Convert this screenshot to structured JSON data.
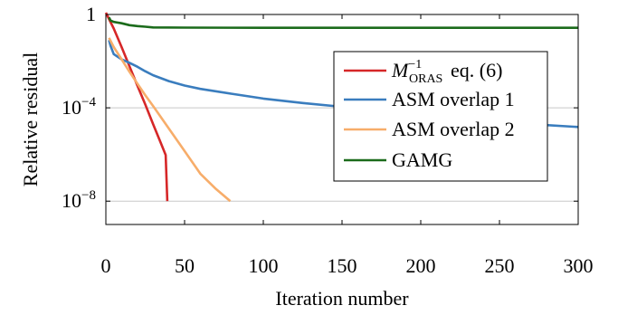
{
  "chart_data": {
    "type": "line",
    "xlabel": "Iteration number",
    "ylabel": "Relative residual",
    "xlim": [
      0,
      300
    ],
    "ylim": [
      1e-09,
      1
    ],
    "yscale": "log",
    "grid": "horizontal lines at major y ticks",
    "legend_position": "right",
    "x_ticks": [
      {
        "value": 0,
        "label": "0"
      },
      {
        "value": 50,
        "label": "50"
      },
      {
        "value": 100,
        "label": "100"
      },
      {
        "value": 150,
        "label": "150"
      },
      {
        "value": 200,
        "label": "200"
      },
      {
        "value": 250,
        "label": "250"
      },
      {
        "value": 300,
        "label": "300"
      }
    ],
    "y_ticks": [
      {
        "value": 1,
        "base": "1",
        "exp": ""
      },
      {
        "value": 0.0001,
        "base": "10",
        "exp": "−4"
      },
      {
        "value": 1e-08,
        "base": "10",
        "exp": "−8"
      }
    ],
    "series": [
      {
        "name": "eq. (6)",
        "legend_symbol": {
          "main": "M",
          "sup": "−1",
          "sub": "ORAS"
        },
        "color": "#d62728",
        "points": [
          [
            0,
            1.2
          ],
          [
            5,
            0.25
          ],
          [
            10,
            0.04
          ],
          [
            15,
            0.006
          ],
          [
            20,
            0.0009
          ],
          [
            25,
            0.00014
          ],
          [
            30,
            2e-05
          ],
          [
            35,
            3e-06
          ],
          [
            38,
            9.5e-07
          ],
          [
            39,
            1e-08
          ]
        ]
      },
      {
        "name": "ASM overlap 1",
        "color": "#3a7dbe",
        "points": [
          [
            2,
            0.08
          ],
          [
            3,
            0.045
          ],
          [
            5,
            0.02
          ],
          [
            10,
            0.012
          ],
          [
            15,
            0.0085
          ],
          [
            20,
            0.0058
          ],
          [
            25,
            0.0037
          ],
          [
            30,
            0.0025
          ],
          [
            40,
            0.0014
          ],
          [
            50,
            0.0009
          ],
          [
            60,
            0.00065
          ],
          [
            80,
            0.0004
          ],
          [
            100,
            0.00025
          ],
          [
            125,
            0.00016
          ],
          [
            150,
            0.00011
          ],
          [
            175,
            7.8e-05
          ],
          [
            200,
            5.8e-05
          ],
          [
            225,
            4.2e-05
          ],
          [
            250,
            2.8e-05
          ],
          [
            275,
            1.9e-05
          ],
          [
            300,
            1.5e-05
          ]
        ]
      },
      {
        "name": "ASM overlap 2",
        "color": "#f7ad6a",
        "points": [
          [
            2,
            0.1
          ],
          [
            5,
            0.04
          ],
          [
            10,
            0.012
          ],
          [
            15,
            0.0035
          ],
          [
            20,
            0.0011
          ],
          [
            25,
            0.00035
          ],
          [
            30,
            0.00012
          ],
          [
            40,
            1.3e-05
          ],
          [
            50,
            1.4e-06
          ],
          [
            60,
            1.5e-07
          ],
          [
            70,
            3.3e-08
          ],
          [
            79,
            1e-08
          ]
        ]
      },
      {
        "name": "GAMG",
        "color": "#1b6b1b",
        "points": [
          [
            2,
            0.75
          ],
          [
            3,
            0.55
          ],
          [
            5,
            0.48
          ],
          [
            10,
            0.42
          ],
          [
            15,
            0.35
          ],
          [
            20,
            0.32
          ],
          [
            25,
            0.3
          ],
          [
            30,
            0.28
          ],
          [
            50,
            0.275
          ],
          [
            100,
            0.27
          ],
          [
            150,
            0.27
          ],
          [
            200,
            0.27
          ],
          [
            250,
            0.27
          ],
          [
            300,
            0.27
          ]
        ]
      }
    ]
  }
}
